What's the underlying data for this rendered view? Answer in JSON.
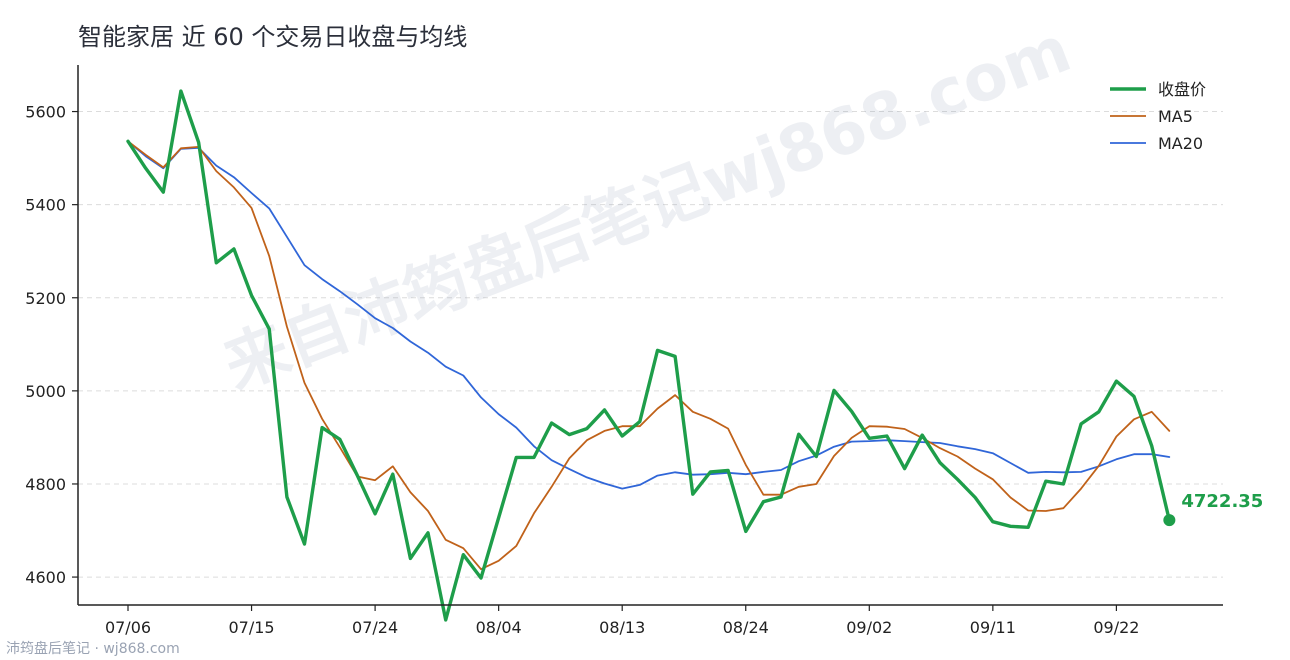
{
  "chart_data": {
    "type": "line",
    "title": "智能家居 近 60 个交易日收盘与均线",
    "ylim": [
      4540,
      5700
    ],
    "yticks": [
      4600,
      4800,
      5000,
      5200,
      5400,
      5600
    ],
    "xticks": [
      {
        "index": 0,
        "label": "07/06"
      },
      {
        "index": 7,
        "label": "07/15"
      },
      {
        "index": 14,
        "label": "07/24"
      },
      {
        "index": 21,
        "label": "08/04"
      },
      {
        "index": 28,
        "label": "08/13"
      },
      {
        "index": 35,
        "label": "08/24"
      },
      {
        "index": 42,
        "label": "09/02"
      },
      {
        "index": 49,
        "label": "09/11"
      },
      {
        "index": 56,
        "label": "09/22"
      }
    ],
    "grid": "horizontal",
    "legend_position": "top-right",
    "series": [
      {
        "name": "收盘价",
        "color": "#1e9e4a",
        "values": [
          5536,
          5478,
          5427,
          5644,
          5534,
          5275,
          5305,
          5205,
          5133,
          4772,
          4671,
          4921,
          4896,
          4818,
          4736,
          4821,
          4640,
          4695,
          4508,
          4648,
          4598,
          4727,
          4857,
          4857,
          4931,
          4906,
          4919,
          4959,
          4903,
          4934,
          5087,
          5074,
          4778,
          4826,
          4829,
          4698,
          4762,
          4772,
          4907,
          4859,
          5001,
          4956,
          4898,
          4903,
          4833,
          4905,
          4846,
          4810,
          4771,
          4719,
          4709,
          4707,
          4806,
          4800,
          4929,
          4955,
          5021,
          4988,
          4882,
          4722.35
        ]
      },
      {
        "name": "MA5",
        "color": "#c0621a",
        "values": [
          5536,
          5507,
          5480,
          5521,
          5524,
          5472,
          5437,
          5393,
          5290,
          5138,
          5017,
          4940,
          4879,
          4816,
          4808,
          4838,
          4782,
          4742,
          4680,
          4662,
          4617,
          4635,
          4667,
          4737,
          4794,
          4855,
          4894,
          4914,
          4924,
          4924,
          4962,
          4991,
          4955,
          4940,
          4919,
          4841,
          4777,
          4777,
          4794,
          4800,
          4860,
          4899,
          4924,
          4923,
          4918,
          4899,
          4877,
          4859,
          4833,
          4810,
          4771,
          4743,
          4742,
          4748,
          4790,
          4839,
          4902,
          4939,
          4955,
          4914
        ]
      },
      {
        "name": "MA20",
        "color": "#3066d8",
        "values": [
          5536,
          5504,
          5478,
          5520,
          5522,
          5484,
          5459,
          5425,
          5392,
          5331,
          5270,
          5240,
          5214,
          5186,
          5156,
          5135,
          5106,
          5082,
          5052,
          5033,
          4986,
          4950,
          4921,
          4881,
          4851,
          4832,
          4814,
          4801,
          4790,
          4798,
          4818,
          4825,
          4820,
          4821,
          4824,
          4821,
          4826,
          4830,
          4849,
          4861,
          4880,
          4891,
          4892,
          4894,
          4892,
          4890,
          4888,
          4881,
          4875,
          4866,
          4845,
          4824,
          4826,
          4825,
          4826,
          4838,
          4853,
          4864,
          4864,
          4858
        ]
      }
    ],
    "last_value_label": "4722.35"
  },
  "watermark": "来自沛筠盘后笔记wj868.com",
  "footer": "沛筠盘后笔记 · wj868.com"
}
